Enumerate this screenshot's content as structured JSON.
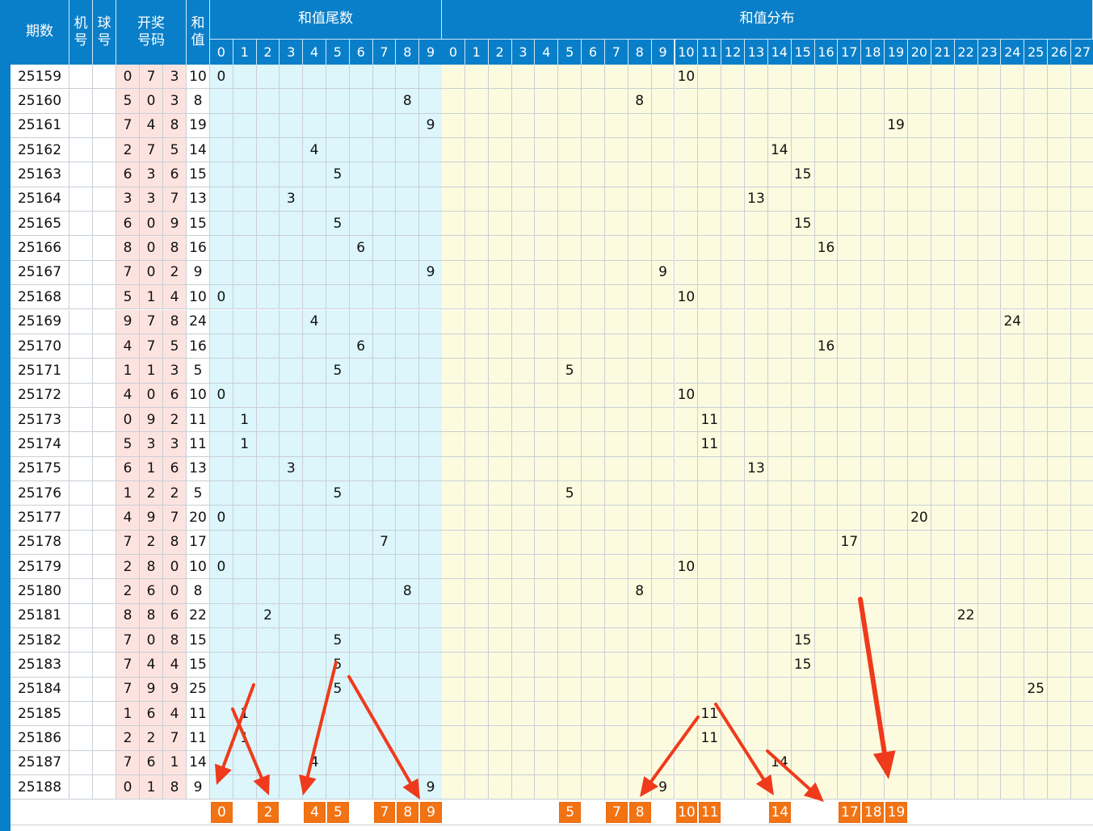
{
  "header": {
    "issue": "期数",
    "machine": "机\n号",
    "ball": "球\n号",
    "draw": "开奖\n号码",
    "sum": "和\n值",
    "tail_group": "和值尾数",
    "dist_group": "和值分布",
    "tail_digits": [
      "0",
      "1",
      "2",
      "3",
      "4",
      "5",
      "6",
      "7",
      "8",
      "9"
    ],
    "dist_values": [
      "0",
      "1",
      "2",
      "3",
      "4",
      "5",
      "6",
      "7",
      "8",
      "9",
      "10",
      "11",
      "12",
      "13",
      "14",
      "15",
      "16",
      "17",
      "18",
      "19",
      "20",
      "21",
      "22",
      "23",
      "24",
      "25",
      "26",
      "27"
    ]
  },
  "rows": [
    {
      "issue": "25159",
      "d": [
        "0",
        "7",
        "3"
      ],
      "sum": "10",
      "tail": "0"
    },
    {
      "issue": "25160",
      "d": [
        "5",
        "0",
        "3"
      ],
      "sum": "8",
      "tail": "8"
    },
    {
      "issue": "25161",
      "d": [
        "7",
        "4",
        "8"
      ],
      "sum": "19",
      "tail": "9"
    },
    {
      "issue": "25162",
      "d": [
        "2",
        "7",
        "5"
      ],
      "sum": "14",
      "tail": "4"
    },
    {
      "issue": "25163",
      "d": [
        "6",
        "3",
        "6"
      ],
      "sum": "15",
      "tail": "5"
    },
    {
      "issue": "25164",
      "d": [
        "3",
        "3",
        "7"
      ],
      "sum": "13",
      "tail": "3"
    },
    {
      "issue": "25165",
      "d": [
        "6",
        "0",
        "9"
      ],
      "sum": "15",
      "tail": "5"
    },
    {
      "issue": "25166",
      "d": [
        "8",
        "0",
        "8"
      ],
      "sum": "16",
      "tail": "6"
    },
    {
      "issue": "25167",
      "d": [
        "7",
        "0",
        "2"
      ],
      "sum": "9",
      "tail": "9"
    },
    {
      "issue": "25168",
      "d": [
        "5",
        "1",
        "4"
      ],
      "sum": "10",
      "tail": "0"
    },
    {
      "issue": "25169",
      "d": [
        "9",
        "7",
        "8"
      ],
      "sum": "24",
      "tail": "4"
    },
    {
      "issue": "25170",
      "d": [
        "4",
        "7",
        "5"
      ],
      "sum": "16",
      "tail": "6"
    },
    {
      "issue": "25171",
      "d": [
        "1",
        "1",
        "3"
      ],
      "sum": "5",
      "tail": "5"
    },
    {
      "issue": "25172",
      "d": [
        "4",
        "0",
        "6"
      ],
      "sum": "10",
      "tail": "0"
    },
    {
      "issue": "25173",
      "d": [
        "0",
        "9",
        "2"
      ],
      "sum": "11",
      "tail": "1"
    },
    {
      "issue": "25174",
      "d": [
        "5",
        "3",
        "3"
      ],
      "sum": "11",
      "tail": "1"
    },
    {
      "issue": "25175",
      "d": [
        "6",
        "1",
        "6"
      ],
      "sum": "13",
      "tail": "3"
    },
    {
      "issue": "25176",
      "d": [
        "1",
        "2",
        "2"
      ],
      "sum": "5",
      "tail": "5"
    },
    {
      "issue": "25177",
      "d": [
        "4",
        "9",
        "7"
      ],
      "sum": "20",
      "tail": "0"
    },
    {
      "issue": "25178",
      "d": [
        "7",
        "2",
        "8"
      ],
      "sum": "17",
      "tail": "7"
    },
    {
      "issue": "25179",
      "d": [
        "2",
        "8",
        "0"
      ],
      "sum": "10",
      "tail": "0"
    },
    {
      "issue": "25180",
      "d": [
        "2",
        "6",
        "0"
      ],
      "sum": "8",
      "tail": "8"
    },
    {
      "issue": "25181",
      "d": [
        "8",
        "8",
        "6"
      ],
      "sum": "22",
      "tail": "2"
    },
    {
      "issue": "25182",
      "d": [
        "7",
        "0",
        "8"
      ],
      "sum": "15",
      "tail": "5"
    },
    {
      "issue": "25183",
      "d": [
        "7",
        "4",
        "4"
      ],
      "sum": "15",
      "tail": "5"
    },
    {
      "issue": "25184",
      "d": [
        "7",
        "9",
        "9"
      ],
      "sum": "25",
      "tail": "5"
    },
    {
      "issue": "25185",
      "d": [
        "1",
        "6",
        "4"
      ],
      "sum": "11",
      "tail": "1"
    },
    {
      "issue": "25186",
      "d": [
        "2",
        "2",
        "7"
      ],
      "sum": "11",
      "tail": "1"
    },
    {
      "issue": "25187",
      "d": [
        "7",
        "6",
        "1"
      ],
      "sum": "14",
      "tail": "4"
    },
    {
      "issue": "25188",
      "d": [
        "0",
        "1",
        "8"
      ],
      "sum": "9",
      "tail": "9"
    }
  ],
  "prediction": {
    "tail_highlight": [
      "0",
      "2",
      "4",
      "5",
      "7",
      "8",
      "9"
    ],
    "dist_highlight": [
      "5",
      "7",
      "8",
      "10",
      "11",
      "14",
      "17",
      "18",
      "19"
    ]
  },
  "colors": {
    "header_bg": "#0a7fc9",
    "tail_bg": "#dcf6fb",
    "dist_bg": "#fdfbdf",
    "digits_bg": "#fde3df",
    "highlight": "#f27314",
    "arrow": "#ef3a1c"
  }
}
